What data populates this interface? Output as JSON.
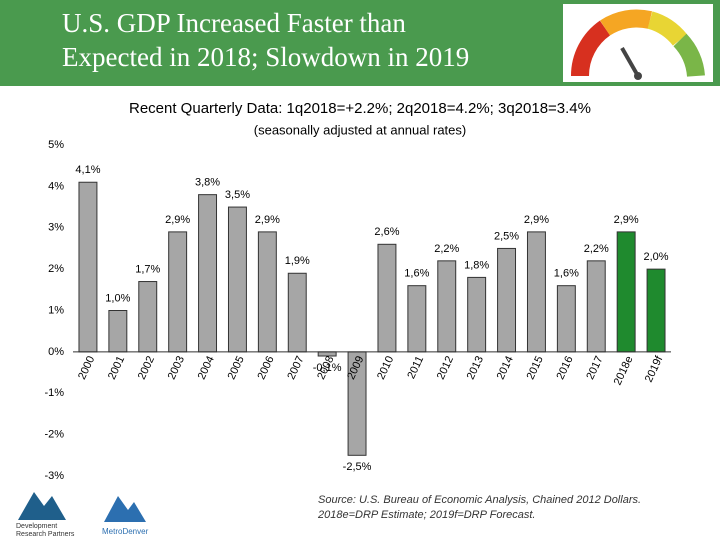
{
  "chart_data": {
    "type": "bar",
    "title_lines": [
      "U.S. GDP Increased Faster than",
      "Expected in 2018; Slowdown in 2019"
    ],
    "subtitle": "Recent Quarterly Data: 1q2018=+2.2%; 2q2018=4.2%; 3q2018=3.4%",
    "note": "(seasonally adjusted at annual rates)",
    "categories": [
      "2000",
      "2001",
      "2002",
      "2003",
      "2004",
      "2005",
      "2006",
      "2007",
      "2008",
      "2009",
      "2010",
      "2011",
      "2012",
      "2013",
      "2014",
      "2015",
      "2016",
      "2017",
      "2018e",
      "2019f"
    ],
    "values": [
      4.1,
      1.0,
      1.7,
      2.9,
      3.8,
      3.5,
      2.9,
      1.9,
      -0.1,
      -2.5,
      2.6,
      1.6,
      2.2,
      1.8,
      2.5,
      2.9,
      1.6,
      2.2,
      2.9,
      2.0
    ],
    "value_labels": [
      "4,1%",
      "1,0%",
      "1,7%",
      "2,9%",
      "3,8%",
      "3,5%",
      "2,9%",
      "1,9%",
      "-0,1%",
      "-2,5%",
      "2,6%",
      "1,6%",
      "2,2%",
      "1,8%",
      "2,5%",
      "2,9%",
      "1,6%",
      "2,2%",
      "2,9%",
      "2,0%"
    ],
    "colors": [
      "#a6a6a6",
      "#a6a6a6",
      "#a6a6a6",
      "#a6a6a6",
      "#a6a6a6",
      "#a6a6a6",
      "#a6a6a6",
      "#a6a6a6",
      "#a6a6a6",
      "#a6a6a6",
      "#a6a6a6",
      "#a6a6a6",
      "#a6a6a6",
      "#a6a6a6",
      "#a6a6a6",
      "#a6a6a6",
      "#a6a6a6",
      "#a6a6a6",
      "#1f8a2e",
      "#1f8a2e"
    ],
    "ylim": [
      -3,
      5
    ],
    "yticks": [
      {
        "value": -3,
        "label": "-3%"
      },
      {
        "value": -2,
        "label": "-2%"
      },
      {
        "value": -1,
        "label": "-1%"
      },
      {
        "value": 0,
        "label": "0%"
      },
      {
        "value": 1,
        "label": "1%"
      },
      {
        "value": 2,
        "label": "2%"
      },
      {
        "value": 3,
        "label": "3%"
      },
      {
        "value": 4,
        "label": "4%"
      },
      {
        "value": 5,
        "label": "5%"
      }
    ],
    "grid": false,
    "source_lines": [
      "Source: U.S. Bureau of Economic Analysis, Chained 2012 Dollars.",
      "2018e=DRP Estimate; 2019f=DRP Forecast."
    ],
    "logos": [
      "Development",
      "Research Partners",
      "MetroDenver"
    ]
  }
}
